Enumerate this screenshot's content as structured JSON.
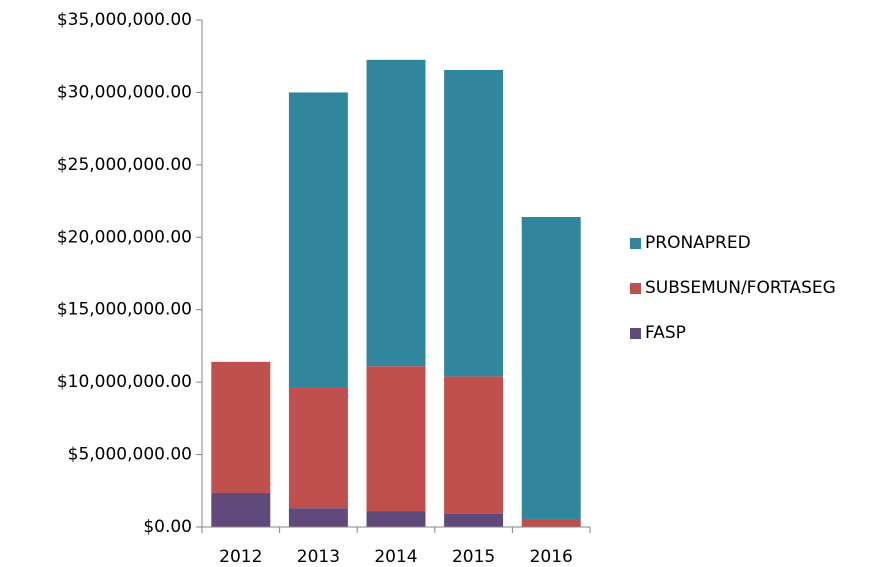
{
  "chart_data": {
    "type": "stacked_bar",
    "categories": [
      "2012",
      "2013",
      "2014",
      "2015",
      "2016"
    ],
    "series": [
      {
        "name": "FASP",
        "color": "#604a7b",
        "values": [
          2350000,
          1300000,
          1100000,
          900000,
          0
        ]
      },
      {
        "name": "SUBSEMUN/FORTASEG",
        "color": "#c0504d",
        "values": [
          9050000,
          8300000,
          10000000,
          9500000,
          550000
        ]
      },
      {
        "name": "PRONAPRED",
        "color": "#31859c",
        "values": [
          0,
          20400000,
          21150000,
          21150000,
          20850000
        ]
      }
    ],
    "ylim": [
      0,
      35000000
    ],
    "yticks": [
      {
        "value": 0,
        "label": "$0.00"
      },
      {
        "value": 5000000,
        "label": "$5,000,000.00"
      },
      {
        "value": 10000000,
        "label": "$10,000,000.00"
      },
      {
        "value": 15000000,
        "label": "$15,000,000.00"
      },
      {
        "value": 20000000,
        "label": "$20,000,000.00"
      },
      {
        "value": 25000000,
        "label": "$25,000,000.00"
      },
      {
        "value": 30000000,
        "label": "$30,000,000.00"
      },
      {
        "value": 35000000,
        "label": "$35,000,000.00"
      }
    ],
    "legend": "right"
  }
}
